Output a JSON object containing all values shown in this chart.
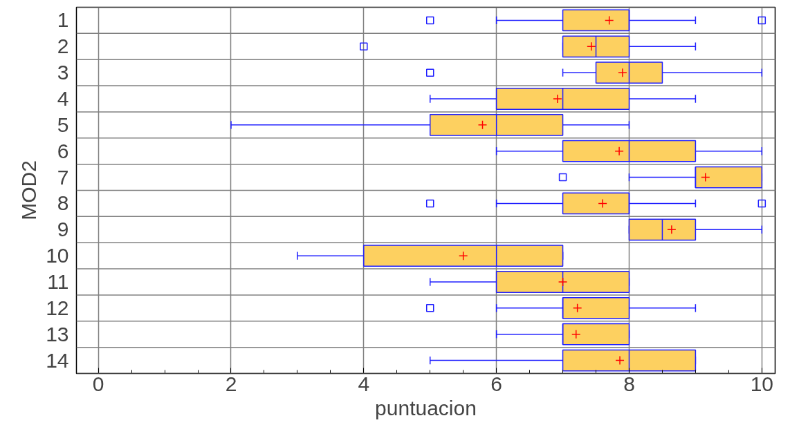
{
  "chart_data": {
    "type": "box",
    "orientation": "horizontal",
    "xlabel": "puntuacion",
    "ylabel": "MOD2",
    "categories": [
      "1",
      "2",
      "3",
      "4",
      "5",
      "6",
      "7",
      "8",
      "9",
      "10",
      "11",
      "12",
      "13",
      "14"
    ],
    "color": "#fdd060",
    "boxes": [
      {
        "low": 6,
        "q1": 7,
        "median": 8,
        "q3": 8,
        "high": 9,
        "mean": 7.7,
        "outliers": [
          5,
          10
        ]
      },
      {
        "low": 7,
        "q1": 7,
        "median": 7.5,
        "q3": 8,
        "high": 9,
        "mean": 7.43,
        "outliers": [
          4
        ]
      },
      {
        "low": 7,
        "q1": 7.5,
        "median": 8,
        "q3": 8.5,
        "high": 10,
        "mean": 7.9,
        "outliers": [
          5
        ]
      },
      {
        "low": 5,
        "q1": 6,
        "median": 7,
        "q3": 8,
        "high": 9,
        "mean": 6.92
      },
      {
        "low": 2,
        "q1": 5,
        "median": 6,
        "q3": 7,
        "high": 8,
        "mean": 5.79
      },
      {
        "low": 6,
        "q1": 7,
        "median": 8,
        "q3": 9,
        "high": 10,
        "mean": 7.85
      },
      {
        "low": 8,
        "q1": 9,
        "median": 9,
        "q3": 10,
        "high": 10,
        "mean": 9.15,
        "outliers": [
          7
        ]
      },
      {
        "low": 6,
        "q1": 7,
        "median": 8,
        "q3": 8,
        "high": 9,
        "mean": 7.6,
        "outliers": [
          5,
          10
        ]
      },
      {
        "low": 8,
        "q1": 8,
        "median": 8.5,
        "q3": 9,
        "high": 10,
        "mean": 8.64
      },
      {
        "low": 3,
        "q1": 4,
        "median": 6,
        "q3": 7,
        "high": 7,
        "mean": 5.5
      },
      {
        "low": 5,
        "q1": 6,
        "median": 7,
        "q3": 8,
        "high": 8,
        "mean": 7.0
      },
      {
        "low": 6,
        "q1": 7,
        "median": 7,
        "q3": 8,
        "high": 9,
        "mean": 7.22,
        "outliers": [
          5
        ]
      },
      {
        "low": 6,
        "q1": 7,
        "median": 7,
        "q3": 8,
        "high": 8,
        "mean": 7.2
      },
      {
        "low": 5,
        "q1": 7,
        "median": 8,
        "q3": 9,
        "high": 9,
        "mean": 7.86
      }
    ],
    "xlim": [
      -0.33,
      10.2
    ],
    "xticks": [
      0,
      {
        "value": 0.5,
        "label": null
      },
      {
        "value": 1,
        "label": null
      },
      {
        "value": 1.5,
        "label": null
      },
      2,
      {
        "value": 2.5,
        "label": null
      },
      {
        "value": 3,
        "label": null
      },
      {
        "value": 3.5,
        "label": null
      },
      4,
      {
        "value": 4.5,
        "label": null
      },
      {
        "value": 5,
        "label": null
      },
      {
        "value": 5.5,
        "label": null
      },
      6,
      {
        "value": 6.5,
        "label": null
      },
      {
        "value": 7,
        "label": null
      },
      {
        "value": 7.5,
        "label": null
      },
      8,
      {
        "value": 8.5,
        "label": null
      },
      {
        "value": 9,
        "label": null
      },
      {
        "value": 9.5,
        "label": null
      },
      10
    ],
    "grid": true
  }
}
